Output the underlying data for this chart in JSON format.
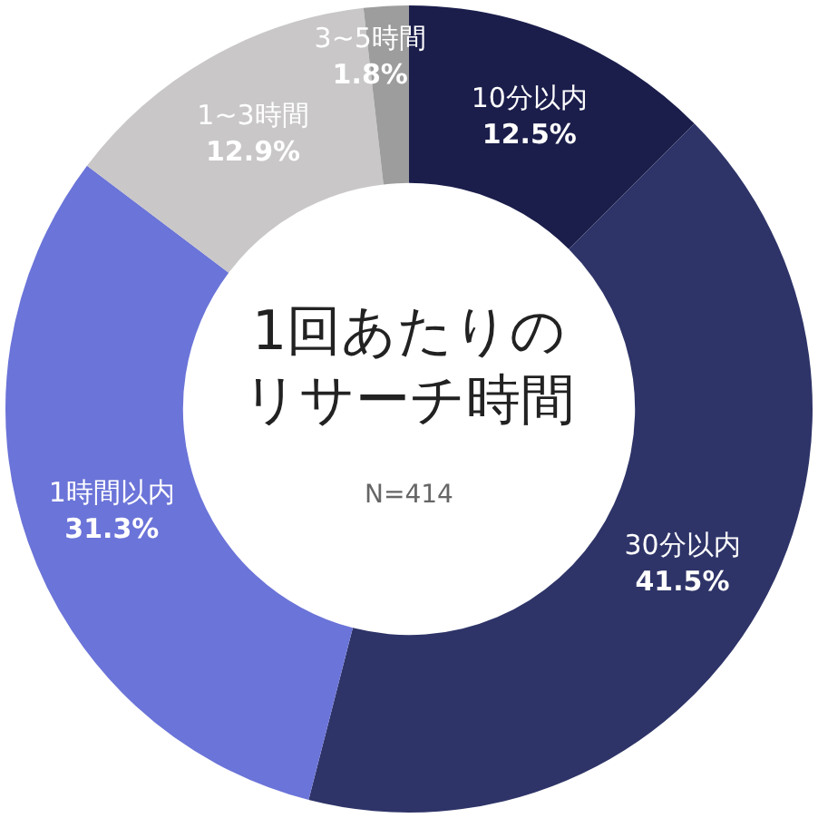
{
  "chart_data": {
    "type": "donut",
    "title": "1回あたりのリサーチ時間",
    "annotations": [
      "N=414"
    ],
    "categories": [
      "10分以内",
      "30分以内",
      "1時間以内",
      "1~3時間",
      "3~5時間"
    ],
    "values": [
      12.5,
      41.5,
      31.3,
      12.9,
      1.8
    ],
    "colors": [
      "#1b1e4b",
      "#2e3468",
      "#6b74d8",
      "#c9c7c7",
      "#9d9d9d"
    ],
    "value_labels": [
      "12.5%",
      "41.5%",
      "31.3%",
      "12.9%",
      "1.8%"
    ],
    "legend": false
  }
}
